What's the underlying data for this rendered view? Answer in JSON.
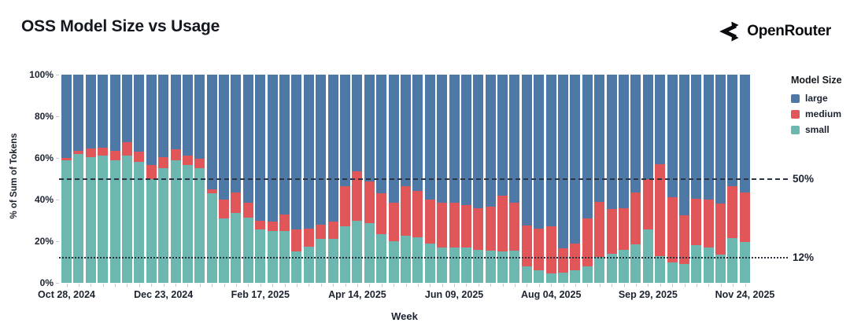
{
  "header": {
    "title": "OSS Model Size vs Usage",
    "brand": "OpenRouter"
  },
  "chart_data": {
    "type": "bar",
    "stacked": true,
    "normalized_percent": true,
    "title": "OSS Model Size vs Usage",
    "xlabel": "Week",
    "ylabel": "% of Sum of Tokens",
    "ylim": [
      0,
      100
    ],
    "y_ticks": [
      0,
      20,
      40,
      60,
      80,
      100
    ],
    "y_tick_labels": [
      "0%",
      "20%",
      "40%",
      "60%",
      "80%",
      "100%"
    ],
    "weeks_count": 57,
    "x_tick_indices": [
      0,
      8,
      16,
      24,
      32,
      40,
      48,
      56
    ],
    "x_tick_labels": [
      "Oct 28, 2024",
      "Dec 23, 2024",
      "Feb 17, 2025",
      "Apr 14, 2025",
      "Jun 09, 2025",
      "Aug 04, 2025",
      "Sep 29, 2025",
      "Nov 24, 2025"
    ],
    "legend": {
      "title": "Model Size",
      "position": "right",
      "entries": [
        "large",
        "medium",
        "small"
      ]
    },
    "colors": {
      "large": "#4e79a7",
      "medium": "#e15759",
      "small": "#6db7b1"
    },
    "reference_lines": [
      {
        "value": 50,
        "label": "50%",
        "style": "dashed"
      },
      {
        "value": 12,
        "label": "12%",
        "style": "dotted"
      }
    ],
    "series": [
      {
        "name": "small",
        "values": [
          59,
          62,
          60.5,
          61,
          59,
          61,
          58,
          50,
          55,
          59,
          56.5,
          55,
          43,
          31,
          33.5,
          31.5,
          25.5,
          25,
          25,
          15,
          17.5,
          21,
          21,
          27,
          30,
          28.5,
          23.5,
          20,
          22.5,
          22,
          19,
          17,
          17,
          17,
          16,
          15.5,
          15,
          15.5,
          8,
          6,
          4.5,
          5,
          6,
          8,
          12.5,
          14,
          16,
          18.5,
          25.5,
          13,
          10,
          9,
          18,
          17,
          13.5,
          21.5,
          19.5
        ]
      },
      {
        "name": "medium",
        "values": [
          1,
          1.5,
          4,
          4,
          4.5,
          6.5,
          5,
          6.5,
          5.5,
          5,
          4.5,
          4.5,
          2,
          9,
          10,
          7,
          4.5,
          4.5,
          8,
          10.5,
          8.5,
          7,
          8.5,
          19.5,
          23.5,
          20,
          19.5,
          18.5,
          24,
          22,
          21,
          21.5,
          21.5,
          20.5,
          20,
          21,
          27,
          23,
          19.5,
          20,
          22.5,
          11.5,
          13,
          23,
          26.5,
          21.5,
          20,
          25,
          24.5,
          44,
          31,
          23.5,
          22.5,
          23,
          24.5,
          25,
          24
        ]
      },
      {
        "name": "large",
        "values": [
          40,
          36.5,
          35.5,
          35,
          36.5,
          32.5,
          37,
          43.5,
          39.5,
          36,
          39,
          40.5,
          55,
          60,
          56.5,
          61.5,
          70,
          70.5,
          67,
          74.5,
          74,
          72,
          70.5,
          53.5,
          46.5,
          51.5,
          57,
          61.5,
          53.5,
          56,
          60,
          61.5,
          61.5,
          62.5,
          64,
          63.5,
          58,
          61.5,
          72.5,
          74,
          73,
          83.5,
          81,
          69,
          61,
          64.5,
          64,
          56.5,
          50,
          43,
          59,
          67.5,
          59.5,
          60,
          62,
          53.5,
          56.5
        ]
      }
    ]
  }
}
